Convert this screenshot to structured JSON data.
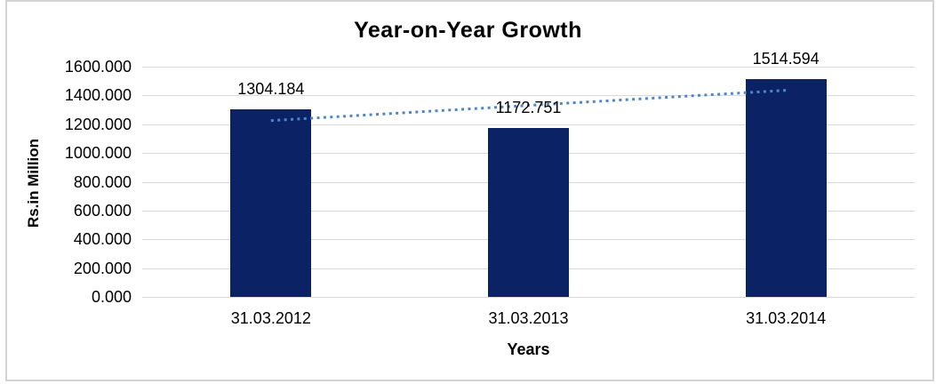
{
  "window": {
    "background": "#ffffff",
    "frame_border_color": "#d3d3d3"
  },
  "chart_data": {
    "type": "bar",
    "title": "Year-on-Year Growth",
    "categories": [
      "31.03.2012",
      "31.03.2013",
      "31.03.2014"
    ],
    "values": [
      1304.184,
      1172.751,
      1514.594
    ],
    "data_labels": [
      "1304.184",
      "1172.751",
      "1514.594"
    ],
    "xlabel": "Years",
    "ylabel": "Rs.in Million",
    "ylim": [
      0,
      1600
    ],
    "ytick_step": 200,
    "ytick_labels": [
      "1600.000",
      "1400.000",
      "1200.000",
      "1000.000",
      "800.000",
      "600.000",
      "400.000",
      "200.000",
      "0.000"
    ],
    "grid": true,
    "legend": "none",
    "bar_color": "#0B2364",
    "gridline_color": "#d9d9d9",
    "label_color": "#000000",
    "trendline": {
      "type": "linear",
      "style": "dotted",
      "color": "#4f86c8"
    }
  }
}
